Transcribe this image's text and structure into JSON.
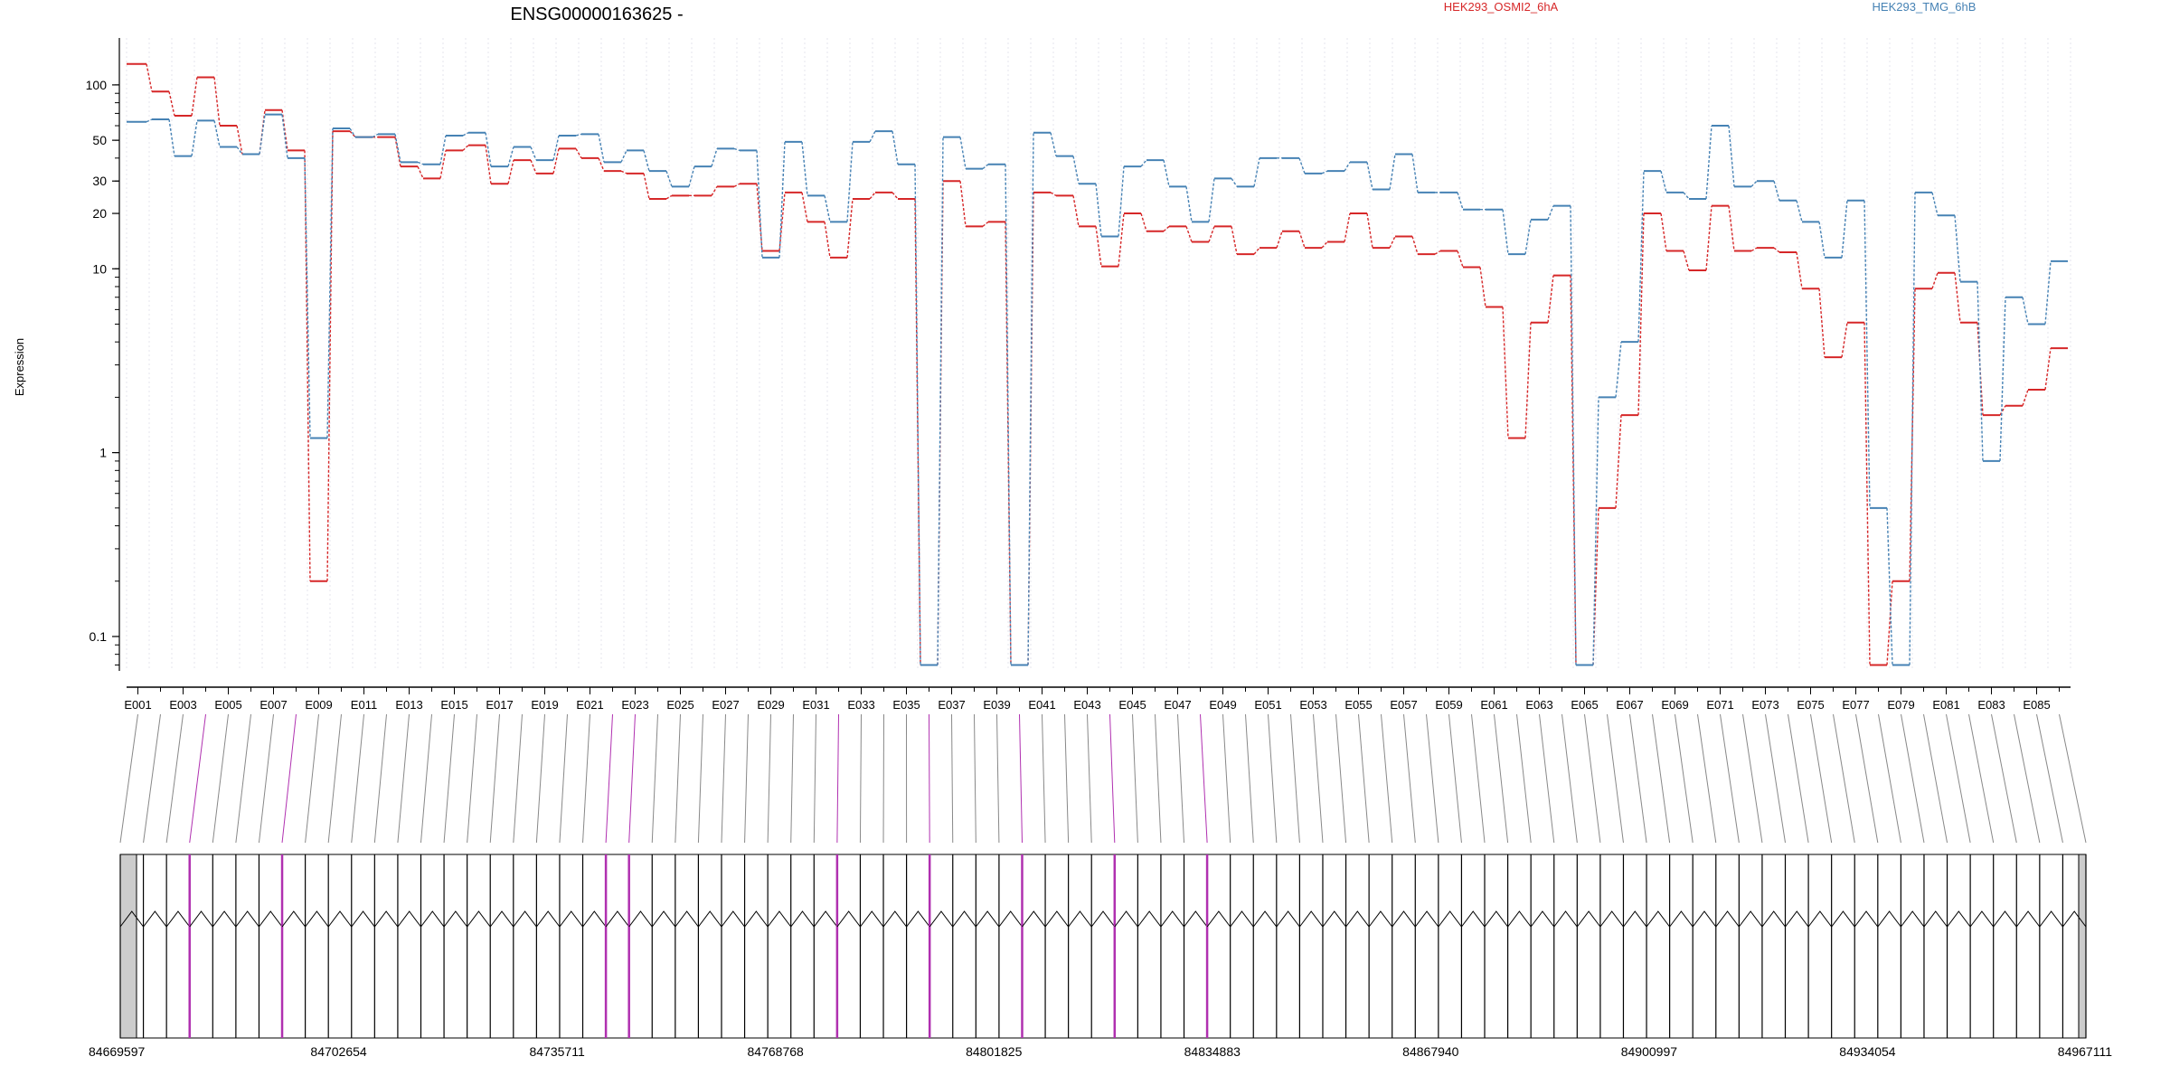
{
  "chart_data": {
    "type": "line",
    "title": "ENSG00000163625 -",
    "ylabel": "Expression",
    "xlabel": "",
    "yscale": "log",
    "ylim": [
      0.065,
      180
    ],
    "yticks": [
      0.1,
      1,
      10,
      20,
      30,
      50,
      100
    ],
    "ytick_labels": [
      "0.1",
      "1",
      "10",
      "20",
      "30",
      "50",
      "100"
    ],
    "exons": [
      "E001",
      "E002",
      "E003",
      "E004",
      "E005",
      "E006",
      "E007",
      "E008",
      "E009",
      "E010",
      "E011",
      "E012",
      "E013",
      "E014",
      "E015",
      "E016",
      "E017",
      "E018",
      "E019",
      "E020",
      "E021",
      "E022",
      "E023",
      "E024",
      "E025",
      "E026",
      "E027",
      "E028",
      "E029",
      "E030",
      "E031",
      "E032",
      "E033",
      "E034",
      "E035",
      "E036",
      "E037",
      "E038",
      "E039",
      "E040",
      "E041",
      "E042",
      "E043",
      "E044",
      "E045",
      "E046",
      "E047",
      "E048",
      "E049",
      "E050",
      "E051",
      "E052",
      "E053",
      "E054",
      "E055",
      "E056",
      "E057",
      "E058",
      "E059",
      "E060",
      "E061",
      "E062",
      "E063",
      "E064",
      "E065",
      "E066",
      "E067",
      "E068",
      "E069",
      "E070",
      "E071",
      "E072",
      "E073",
      "E074",
      "E075",
      "E076",
      "E077",
      "E078",
      "E079",
      "E080",
      "E081",
      "E082",
      "E083",
      "E084",
      "E085",
      "E086"
    ],
    "series": [
      {
        "name": "HEK293_OSMI2_6hA",
        "color": "#d62728",
        "values": [
          130,
          92,
          68,
          110,
          60,
          42,
          73,
          44,
          0.2,
          56,
          52,
          52,
          36,
          31,
          44,
          47,
          29,
          39,
          33,
          45,
          40,
          34,
          33,
          24,
          25,
          25,
          28,
          29,
          12.5,
          26,
          18,
          11.5,
          24,
          26,
          24,
          0.07,
          30,
          17,
          18,
          0.07,
          26,
          25,
          17,
          10.3,
          20,
          16,
          17,
          14,
          17,
          12,
          13,
          16,
          13,
          14,
          20,
          13,
          15,
          12,
          12.5,
          10.2,
          6.2,
          1.2,
          5.1,
          9.2,
          0.07,
          0.5,
          1.6,
          20,
          12.5,
          9.8,
          22,
          12.5,
          13,
          12.3,
          7.8,
          3.3,
          5.1,
          0.07,
          0.2,
          7.8,
          9.5,
          5.1,
          1.6,
          1.8,
          2.2,
          3.7
        ]
      },
      {
        "name": "HEK293_TMG_6hB",
        "color": "#4682b4",
        "values": [
          63,
          65,
          41,
          64,
          46,
          42,
          69,
          40,
          1.2,
          58,
          52,
          54,
          38,
          37,
          53,
          55,
          36,
          46,
          39,
          53,
          54,
          38,
          44,
          34,
          28,
          36,
          45,
          44,
          11.5,
          49,
          25,
          18,
          49,
          56,
          37,
          0.07,
          52,
          35,
          37,
          0.07,
          55,
          41,
          29,
          15,
          36,
          39,
          28,
          18,
          31,
          28,
          40,
          40,
          33,
          34,
          38,
          27,
          42,
          26,
          26,
          21,
          21,
          12,
          18.5,
          22,
          0.07,
          2,
          4,
          34,
          26,
          24,
          60,
          28,
          30,
          23.5,
          18,
          11.5,
          23.5,
          0.5,
          0.07,
          26,
          19.5,
          8.5,
          0.9,
          7,
          5,
          11
        ]
      }
    ],
    "legend": [
      "HEK293_OSMI2_6hA",
      "HEK293_TMG_6hB"
    ],
    "legend_position": "top",
    "grid": "vertical-dotted",
    "genomic_axis": {
      "start": 84669597,
      "end": 84967111,
      "ticks": [
        84669597,
        84702654,
        84735711,
        84768768,
        84801825,
        84834883,
        84867940,
        84900997,
        84934054,
        84967111
      ],
      "tick_labels": [
        "84669597",
        "84702654",
        "84735711",
        "84768768",
        "84801825",
        "84834883",
        "84867940",
        "84900997",
        "84934054",
        "84967111"
      ]
    },
    "highlighted_exons": [
      "E004",
      "E008",
      "E022",
      "E023",
      "E032",
      "E036",
      "E040",
      "E044",
      "E048"
    ]
  },
  "colors": {
    "series_a": "#d62728",
    "series_b": "#4682b4",
    "highlight": "#b030b0",
    "exon_fill": "#cccccc",
    "connector": "#888888"
  }
}
